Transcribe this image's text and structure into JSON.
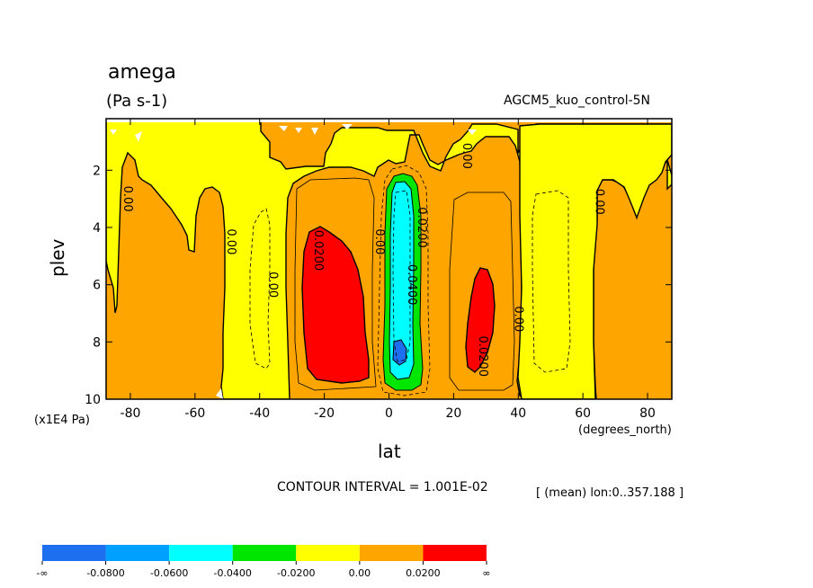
{
  "chart_data": {
    "type": "heatmap",
    "title": "amega",
    "units": "(Pa s-1)",
    "run_label": "AGCM5_kuo_control-5N",
    "xlabel": "lat",
    "x_units": "(degrees_north)",
    "ylabel": "plev",
    "y_units": "(x1E4 Pa)",
    "xlim": [
      -87.5,
      87.5
    ],
    "ylim": [
      10,
      0.2
    ],
    "x_ticks": [
      -80,
      -60,
      -40,
      -20,
      0,
      20,
      40,
      60,
      80
    ],
    "y_ticks": [
      2,
      4,
      6,
      8,
      10
    ],
    "contour_interval_text": "CONTOUR INTERVAL = 1.001E-02",
    "mean_text": "[ (mean) lon:0..357.188 ]",
    "colorbar": {
      "bins": [
        {
          "label_low": "-∞",
          "label_high": "-0.0800",
          "color": "#1e6ef0"
        },
        {
          "label_low": "-0.0800",
          "label_high": "-0.0600",
          "color": "#00a0ff"
        },
        {
          "label_low": "-0.0600",
          "label_high": "-0.0400",
          "color": "#00ffff"
        },
        {
          "label_low": "-0.0400",
          "label_high": "-0.0200",
          "color": "#00e600"
        },
        {
          "label_low": "-0.0200",
          "label_high": "0.00",
          "color": "#ffff00"
        },
        {
          "label_low": "0.00",
          "label_high": "0.0200",
          "color": "#ffa500"
        },
        {
          "label_low": "0.0200",
          "label_high": "∞",
          "color": "#ff0000"
        }
      ],
      "tick_labels": [
        "-∞",
        "-0.0800",
        "-0.0600",
        "-0.0400",
        "-0.0200",
        "0.00",
        "0.0200",
        "∞"
      ]
    },
    "contour_labels": [
      {
        "text": "0.00",
        "lat": -82,
        "plev": 3.0
      },
      {
        "text": "0.00",
        "lat": -50,
        "plev": 4.5
      },
      {
        "text": "0.00",
        "lat": -37,
        "plev": 6.0
      },
      {
        "text": "0.0200",
        "lat": -23,
        "plev": 4.8
      },
      {
        "text": "0.00",
        "lat": -4,
        "plev": 4.5
      },
      {
        "text": "0.0200",
        "lat": 9,
        "plev": 4.0
      },
      {
        "text": "0.0400",
        "lat": 6,
        "plev": 6.0
      },
      {
        "text": "0.00",
        "lat": 23,
        "plev": 1.5
      },
      {
        "text": "0.0200",
        "lat": 28,
        "plev": 8.5
      },
      {
        "text": "0.00",
        "lat": 39,
        "plev": 7.2
      },
      {
        "text": "0.00",
        "lat": 64,
        "plev": 3.1
      }
    ]
  }
}
